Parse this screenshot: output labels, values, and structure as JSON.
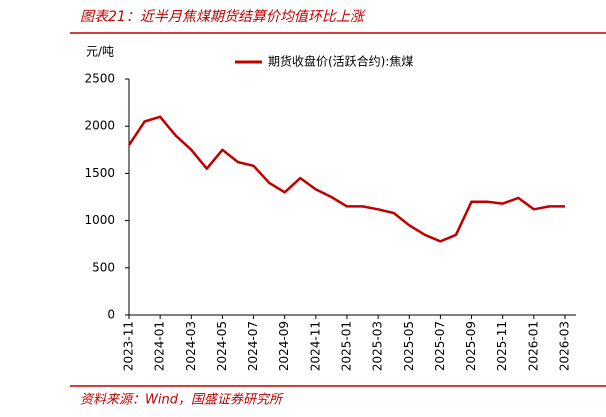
{
  "chart_data": {
    "type": "line",
    "title": "图表21：近半月焦煤期货结算价均值环比上涨",
    "y_label": "元/吨",
    "source": "资料来源：Wind，国盛证券研究所",
    "x": [
      "2023-11",
      "2023-12",
      "2024-01",
      "2024-02",
      "2024-03",
      "2024-04",
      "2024-05",
      "2024-06",
      "2024-07",
      "2024-08",
      "2024-09",
      "2024-10",
      "2024-11",
      "2024-12",
      "2025-01",
      "2025-02",
      "2025-03",
      "2025-04",
      "2025-05",
      "2025-06",
      "2025-07",
      "2025-08",
      "2025-09",
      "2025-10",
      "2025-11",
      "2025-12",
      "2026-01",
      "2026-02",
      "2026-03"
    ],
    "series": [
      {
        "name": "期货收盘价(活跃合约):焦煤",
        "color": "#c00000",
        "values": [
          1800,
          2050,
          2100,
          1900,
          1750,
          1550,
          1750,
          1620,
          1580,
          1400,
          1300,
          1450,
          1330,
          1250,
          1150,
          1150,
          1120,
          1080,
          950,
          850,
          780,
          850,
          1200,
          1200,
          1180,
          1240,
          1120,
          1150,
          1150
        ]
      }
    ],
    "xticks": [
      "2023-11",
      "2024-01",
      "2024-03",
      "2024-05",
      "2024-07",
      "2024-09",
      "2024-11",
      "2025-01",
      "2025-03",
      "2025-05",
      "2025-07",
      "2025-09",
      "2025-11",
      "2026-01",
      "2026-03"
    ],
    "ylim": [
      0,
      2500
    ],
    "yticks": [
      0,
      500,
      1000,
      1500,
      2000,
      2500
    ],
    "grid": false
  }
}
